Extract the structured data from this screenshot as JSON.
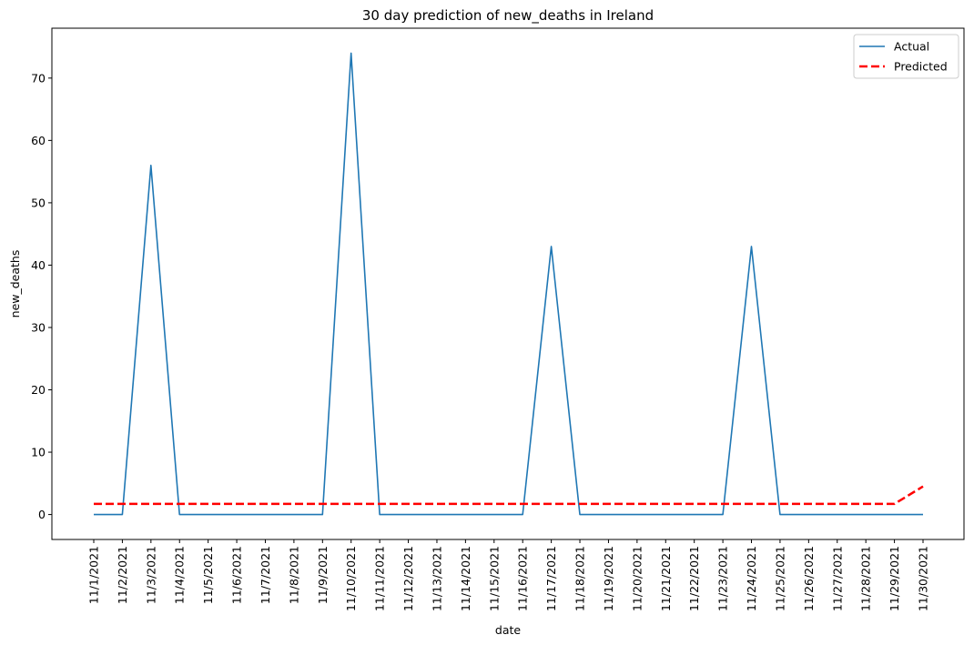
{
  "chart_data": {
    "type": "line",
    "title": "30 day prediction of new_deaths in Ireland",
    "xlabel": "date",
    "ylabel": "new_deaths",
    "ylim": [
      -4,
      78
    ],
    "yticks": [
      0,
      10,
      20,
      30,
      40,
      50,
      60,
      70
    ],
    "grid": false,
    "legend_position": "top-right",
    "x": [
      "11/1/2021",
      "11/2/2021",
      "11/3/2021",
      "11/4/2021",
      "11/5/2021",
      "11/6/2021",
      "11/7/2021",
      "11/8/2021",
      "11/9/2021",
      "11/10/2021",
      "11/11/2021",
      "11/12/2021",
      "11/13/2021",
      "11/14/2021",
      "11/15/2021",
      "11/16/2021",
      "11/17/2021",
      "11/18/2021",
      "11/19/2021",
      "11/20/2021",
      "11/21/2021",
      "11/22/2021",
      "11/23/2021",
      "11/24/2021",
      "11/25/2021",
      "11/26/2021",
      "11/27/2021",
      "11/28/2021",
      "11/29/2021",
      "11/30/2021"
    ],
    "series": [
      {
        "name": "Actual",
        "color": "#1f77b4",
        "style": "solid",
        "values": [
          0,
          0,
          56,
          0,
          0,
          0,
          0,
          0,
          0,
          74,
          0,
          0,
          0,
          0,
          0,
          0,
          43,
          0,
          0,
          0,
          0,
          0,
          0,
          43,
          0,
          0,
          0,
          0,
          0,
          0
        ]
      },
      {
        "name": "Predicted",
        "color": "#ff0000",
        "style": "dashed",
        "values": [
          1.7,
          1.7,
          1.7,
          1.7,
          1.7,
          1.7,
          1.7,
          1.7,
          1.7,
          1.7,
          1.7,
          1.7,
          1.7,
          1.7,
          1.7,
          1.7,
          1.7,
          1.7,
          1.7,
          1.7,
          1.7,
          1.7,
          1.7,
          1.7,
          1.7,
          1.7,
          1.7,
          1.7,
          1.7,
          4.5
        ]
      }
    ]
  }
}
